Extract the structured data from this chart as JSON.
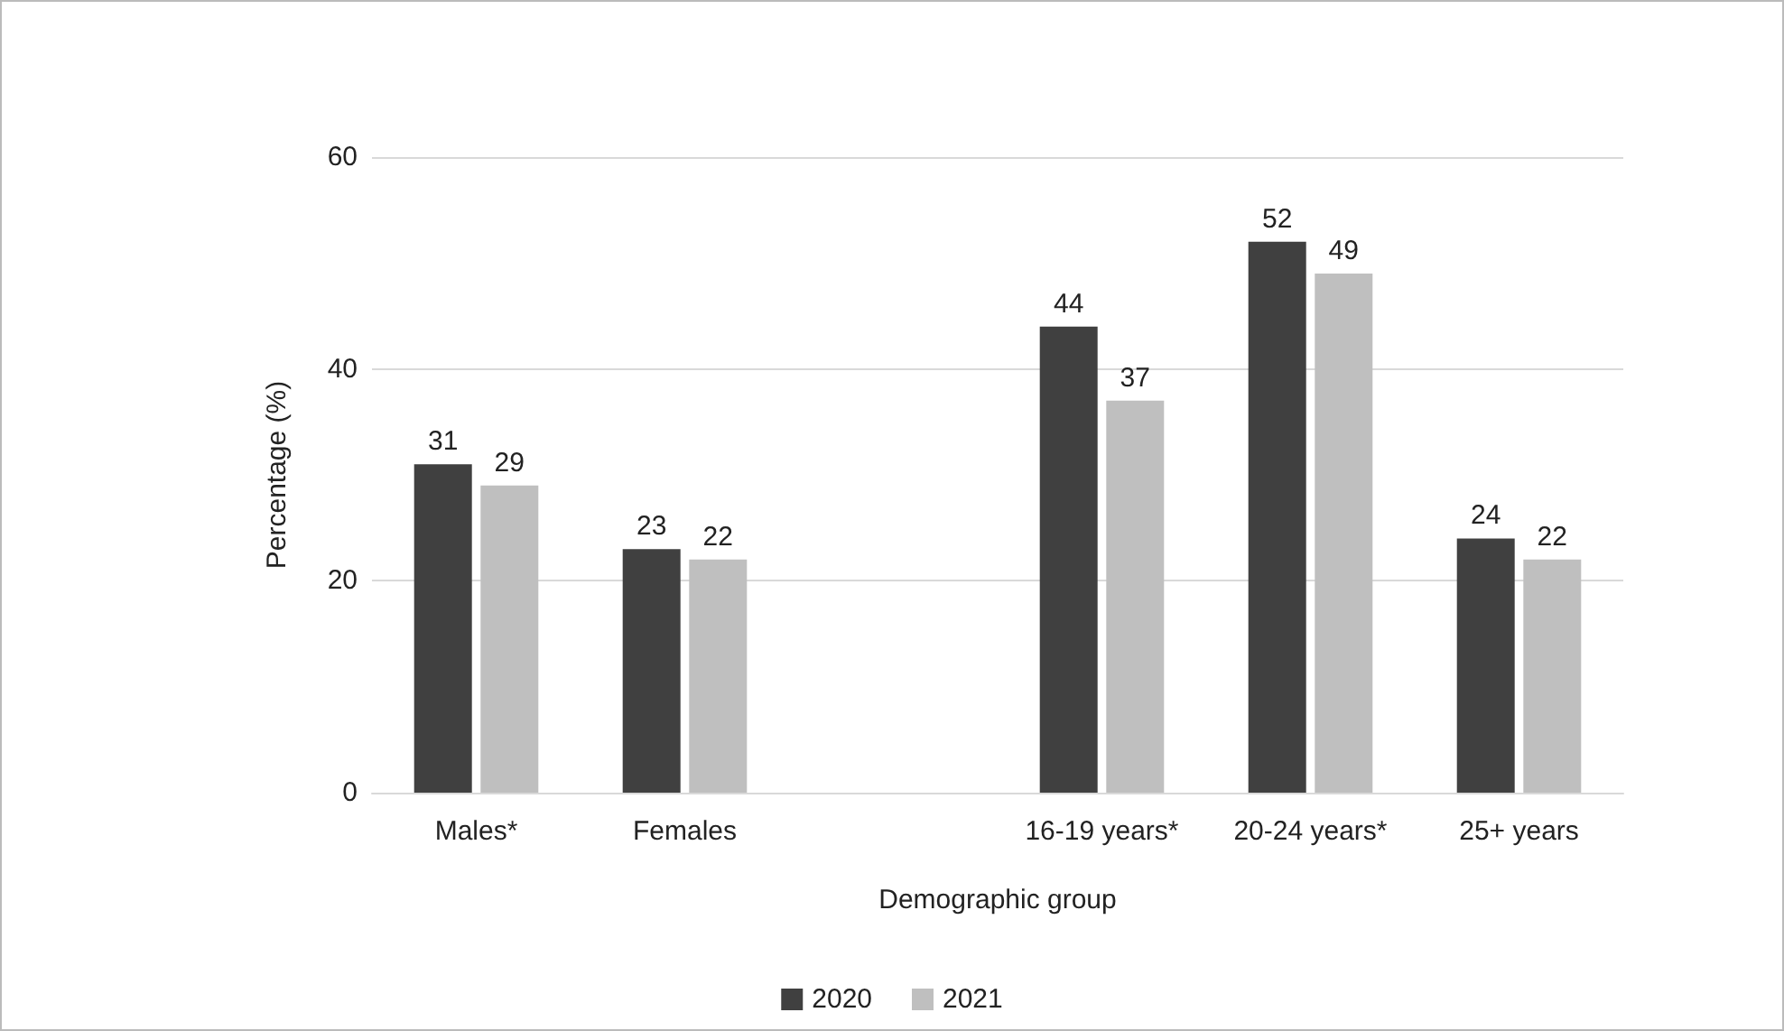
{
  "chart_data": {
    "type": "bar",
    "xlabel": "Demographic group",
    "ylabel": "Percentage (%)",
    "categories": [
      "Males*",
      "Females",
      null,
      "16-19 years*",
      "20-24 years*",
      "25+ years"
    ],
    "series": [
      {
        "name": "2020",
        "color": "#404040",
        "values": [
          31,
          23,
          null,
          44,
          52,
          24
        ]
      },
      {
        "name": "2021",
        "color": "#bfbfbf",
        "values": [
          29,
          22,
          null,
          37,
          49,
          22
        ]
      }
    ],
    "ylim": [
      0,
      60
    ],
    "yticks": [
      0,
      20,
      40,
      60
    ],
    "grid": "y",
    "legend": "bottom",
    "data_labels": true
  }
}
